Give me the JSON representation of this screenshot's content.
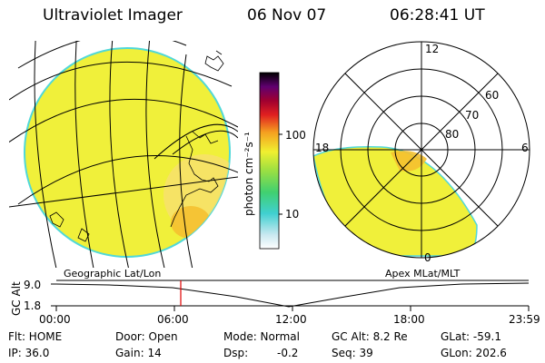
{
  "header": {
    "title": "Ultraviolet Imager",
    "date": "06 Nov 07",
    "time": "06:28:41 UT"
  },
  "colorbar": {
    "unit_label": "photon cm⁻²s⁻¹",
    "ticks": [
      "100",
      "10"
    ]
  },
  "polar_plot": {
    "mlt_labels": [
      "12",
      "18",
      "6",
      "0"
    ],
    "lat_labels": [
      "60",
      "70",
      "80"
    ],
    "caption": "Apex MLat/MLT"
  },
  "geo_plot": {
    "caption": "Geographic Lat/Lon"
  },
  "altitude_plot": {
    "ylabel": "GC Alt",
    "y_ticks": [
      "9.0",
      "1.8"
    ],
    "x_ticks": [
      "00:00",
      "06:00",
      "12:00",
      "18:00",
      "23:59"
    ],
    "marker_time": "06:28:41"
  },
  "status": {
    "filter": "Flt: HOME",
    "door": "Door: Open",
    "mode": "Mode: Normal",
    "gc_alt": "GC Alt: 8.2 Re",
    "glat": "GLat: -59.1",
    "ip": "IP: 36.0",
    "gain": "Gain: 14",
    "dsp_label": "Dsp:",
    "dsp_value": "-0.2",
    "seq": "Seq: 39",
    "glon": "GLon: 202.6"
  },
  "colors": {
    "emission": "#f0f03a",
    "emission_bright": "#f5c030",
    "limb": "#50d8d8",
    "marker": "#e00000"
  }
}
